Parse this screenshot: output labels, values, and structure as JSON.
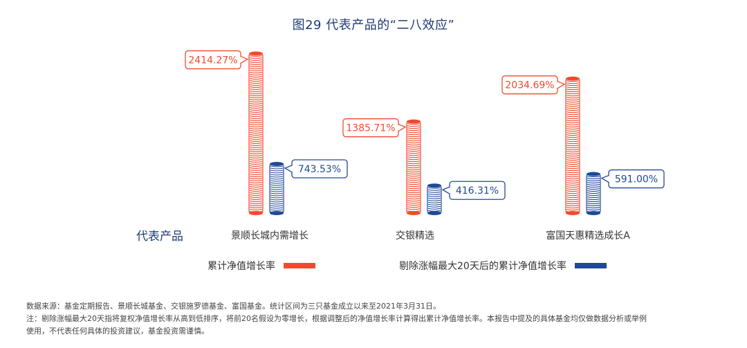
{
  "title": "图29  代表产品的“二八效应”",
  "category_header": "代表产品",
  "legend": {
    "cumulative": "累计净值增长率",
    "excluded": "剔除涨幅最大20天后的累计净值增长率"
  },
  "colors": {
    "cumulative": "#f04a2e",
    "excluded": "#1f4896"
  },
  "footnotes": [
    "数据来源：基金定期报告、景顺长城基金、交银施罗德基金、富国基金。统计区间为三只基金成立以来至2021年3月31日。",
    "注：剔除涨幅最大20天指将复权净值增长率从高到低排序，将前20名假设为零增长，根据调整后的净值增长率计算得出累计净值增长率。本报告中提及的具体基金均仅做数据分析或举例",
    "使用，不代表任何具体的投资建议，基金投资需谨慎。"
  ],
  "chart_data": {
    "type": "bar",
    "categories": [
      "景顺长城内需增长",
      "交银精选",
      "富国天惠精选成长A"
    ],
    "series": [
      {
        "name": "累计净值增长率",
        "values": [
          2414.27,
          1385.71,
          2034.69
        ],
        "labels": [
          "2414.27%",
          "1385.71%",
          "2034.69%"
        ]
      },
      {
        "name": "剔除涨幅最大20天后的累计净值增长率",
        "values": [
          743.53,
          416.31,
          591.0
        ],
        "labels": [
          "743.53%",
          "416.31%",
          "591.00%"
        ]
      }
    ],
    "unit": "%",
    "legend_position": "bottom"
  }
}
